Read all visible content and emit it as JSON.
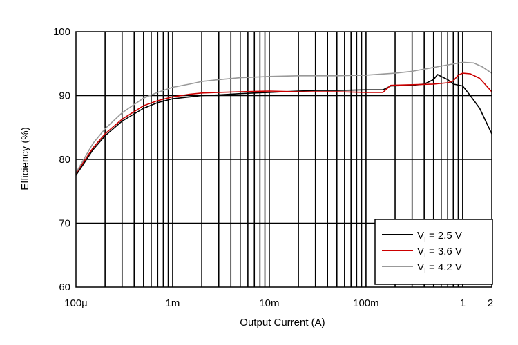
{
  "chart_data": {
    "type": "line",
    "xlabel": "Output Current (A)",
    "ylabel": "Efficiency (%)",
    "x_scale": "log",
    "xlim": [
      0.0001,
      2
    ],
    "ylim": [
      60,
      100
    ],
    "grid": true,
    "legend_position": "bottom-right",
    "x_ticks": [
      {
        "value": 0.0001,
        "label": "100µ"
      },
      {
        "value": 0.001,
        "label": "1m"
      },
      {
        "value": 0.01,
        "label": "10m"
      },
      {
        "value": 0.1,
        "label": "100m"
      },
      {
        "value": 1,
        "label": "1"
      },
      {
        "value": 2,
        "label": "2"
      }
    ],
    "y_ticks": [
      {
        "value": 60,
        "label": "60"
      },
      {
        "value": 70,
        "label": "70"
      },
      {
        "value": 80,
        "label": "80"
      },
      {
        "value": 90,
        "label": "90"
      },
      {
        "value": 100,
        "label": "100"
      }
    ],
    "series": [
      {
        "name": "VI = 2.5 V",
        "name_main": "V",
        "name_sub": "I",
        "name_rest": " = 2.5 V",
        "color": "#000000",
        "points": [
          [
            0.0001,
            77.5
          ],
          [
            0.00015,
            81.5
          ],
          [
            0.0002,
            83.7
          ],
          [
            0.0003,
            86.0
          ],
          [
            0.0005,
            88.0
          ],
          [
            0.0007,
            88.9
          ],
          [
            0.001,
            89.5
          ],
          [
            0.0015,
            89.8
          ],
          [
            0.002,
            90.0
          ],
          [
            0.003,
            90.1
          ],
          [
            0.005,
            90.3
          ],
          [
            0.01,
            90.5
          ],
          [
            0.02,
            90.7
          ],
          [
            0.03,
            90.8
          ],
          [
            0.05,
            90.8
          ],
          [
            0.1,
            90.9
          ],
          [
            0.15,
            90.9
          ],
          [
            0.18,
            91.5
          ],
          [
            0.3,
            91.6
          ],
          [
            0.4,
            91.8
          ],
          [
            0.5,
            92.5
          ],
          [
            0.55,
            93.3
          ],
          [
            0.6,
            93.0
          ],
          [
            0.7,
            92.5
          ],
          [
            0.8,
            91.8
          ],
          [
            1,
            91.5
          ],
          [
            1.2,
            90.0
          ],
          [
            1.5,
            88.0
          ],
          [
            2,
            84.0
          ]
        ]
      },
      {
        "name": "VI = 3.6 V",
        "name_main": "V",
        "name_sub": "I",
        "name_rest": " = 3.6 V",
        "color": "#cc0000",
        "points": [
          [
            0.0001,
            77.8
          ],
          [
            0.00015,
            81.8
          ],
          [
            0.0002,
            84.0
          ],
          [
            0.0003,
            86.3
          ],
          [
            0.0005,
            88.4
          ],
          [
            0.0007,
            89.2
          ],
          [
            0.001,
            89.8
          ],
          [
            0.0015,
            90.2
          ],
          [
            0.002,
            90.4
          ],
          [
            0.003,
            90.5
          ],
          [
            0.005,
            90.6
          ],
          [
            0.01,
            90.7
          ],
          [
            0.02,
            90.6
          ],
          [
            0.05,
            90.6
          ],
          [
            0.1,
            90.5
          ],
          [
            0.15,
            90.5
          ],
          [
            0.18,
            91.6
          ],
          [
            0.3,
            91.7
          ],
          [
            0.5,
            91.8
          ],
          [
            0.7,
            92.0
          ],
          [
            0.8,
            92.3
          ],
          [
            0.9,
            93.2
          ],
          [
            1,
            93.5
          ],
          [
            1.2,
            93.4
          ],
          [
            1.5,
            92.7
          ],
          [
            2,
            90.6
          ]
        ]
      },
      {
        "name": "VI = 4.2 V",
        "name_main": "V",
        "name_sub": "I",
        "name_rest": " = 4.2 V",
        "color": "#999999",
        "points": [
          [
            0.0001,
            77.9
          ],
          [
            0.00015,
            82.5
          ],
          [
            0.0002,
            84.8
          ],
          [
            0.0003,
            87.3
          ],
          [
            0.0005,
            89.6
          ],
          [
            0.0007,
            90.5
          ],
          [
            0.001,
            91.3
          ],
          [
            0.0015,
            91.8
          ],
          [
            0.002,
            92.2
          ],
          [
            0.003,
            92.5
          ],
          [
            0.005,
            92.8
          ],
          [
            0.01,
            93.0
          ],
          [
            0.02,
            93.1
          ],
          [
            0.05,
            93.1
          ],
          [
            0.1,
            93.2
          ],
          [
            0.2,
            93.5
          ],
          [
            0.3,
            93.8
          ],
          [
            0.5,
            94.4
          ],
          [
            0.7,
            94.8
          ],
          [
            1,
            95.2
          ],
          [
            1.3,
            95.1
          ],
          [
            1.6,
            94.5
          ],
          [
            2,
            93.5
          ]
        ]
      }
    ]
  }
}
